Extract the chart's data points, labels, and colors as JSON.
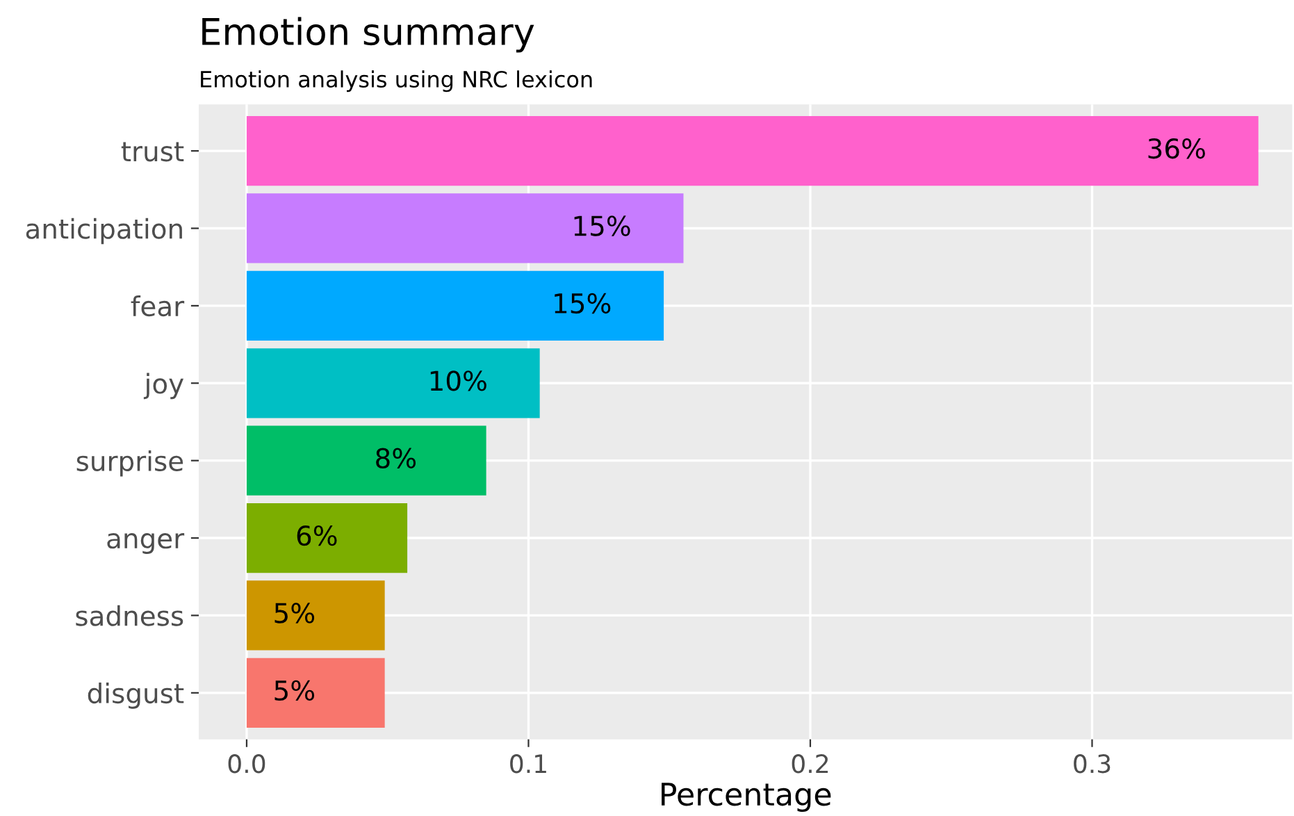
{
  "chart_data": {
    "type": "bar",
    "orientation": "horizontal",
    "title": "Emotion summary",
    "subtitle": "Emotion analysis using NRC lexicon",
    "xlabel": "Percentage",
    "categories": [
      "trust",
      "anticipation",
      "fear",
      "joy",
      "surprise",
      "anger",
      "sadness",
      "disgust"
    ],
    "values": [
      0.359,
      0.155,
      0.148,
      0.104,
      0.085,
      0.057,
      0.049,
      0.049
    ],
    "colors": [
      "#ff61cc",
      "#c77cff",
      "#00a9ff",
      "#00bfc4",
      "#00be67",
      "#7cae00",
      "#cd9600",
      "#f8766d"
    ],
    "value_labels": [
      "36%",
      "15%",
      "15%",
      "10%",
      "8%",
      "6%",
      "5%",
      "5%"
    ],
    "xlim": [
      -0.017,
      0.371
    ],
    "xticks": [
      {
        "value": 0,
        "label": "0.0"
      },
      0.1,
      0.2,
      0.3
    ],
    "grid": true
  }
}
